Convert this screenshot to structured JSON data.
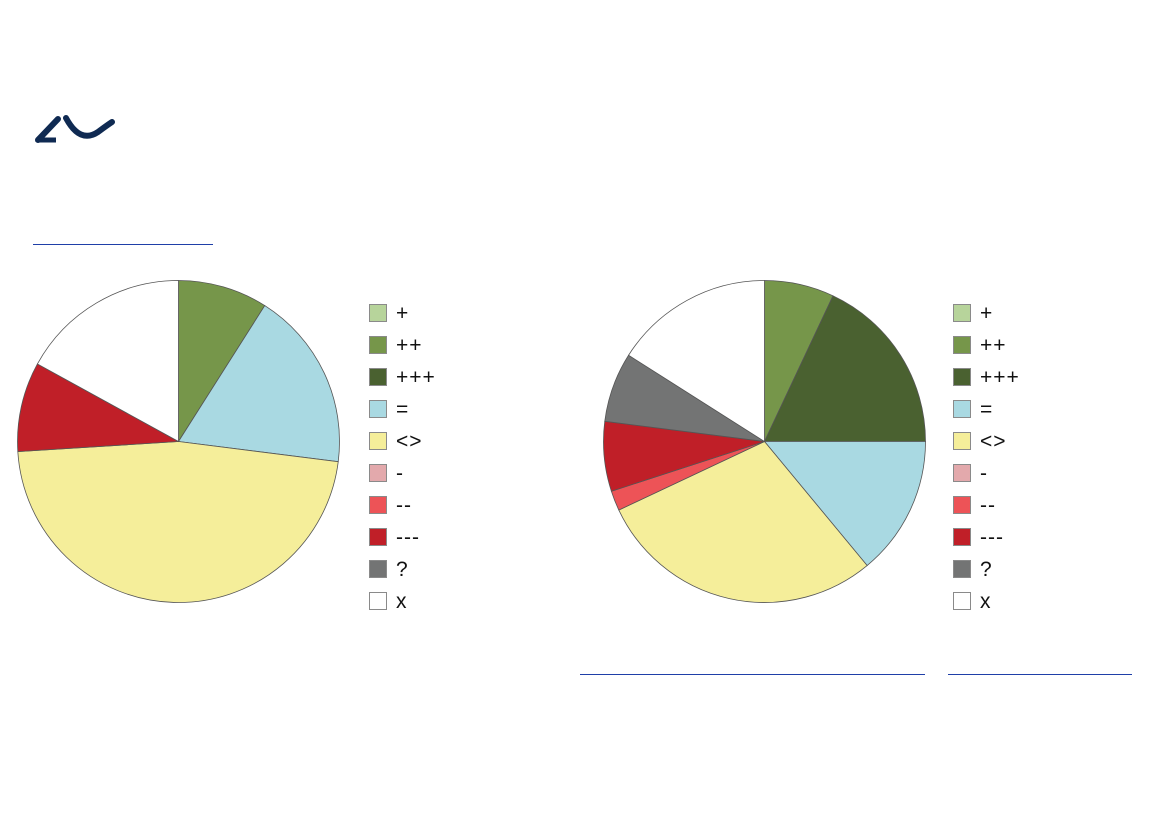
{
  "logo": {
    "icon": "aau-wave-logo-icon",
    "color": "#0f2a52"
  },
  "link_rule_color": "#1f3fa8",
  "legend": [
    {
      "label": "+",
      "color": "#b7d49b"
    },
    {
      "label": "++",
      "color": "#76964a"
    },
    {
      "label": "+++",
      "color": "#4a6130"
    },
    {
      "label": "=",
      "color": "#a9d9e2"
    },
    {
      "label": "<>",
      "color": "#f5ee9a"
    },
    {
      "label": "-",
      "color": "#e3a9ac"
    },
    {
      "label": "--",
      "color": "#ed5357"
    },
    {
      "label": "---",
      "color": "#c01f28"
    },
    {
      "label": "?",
      "color": "#737474"
    },
    {
      "label": "x",
      "color": "#ffffff"
    }
  ],
  "chart_data": [
    {
      "type": "pie",
      "title": "",
      "categories": [
        "+",
        "++",
        "+++",
        "=",
        "<>",
        "-",
        "--",
        "---",
        "?",
        "x"
      ],
      "values": [
        0,
        9,
        0,
        18,
        47,
        0,
        0,
        9,
        0,
        17
      ],
      "unit": "% (approx.)"
    },
    {
      "type": "pie",
      "title": "",
      "categories": [
        "+",
        "++",
        "+++",
        "=",
        "<>",
        "-",
        "--",
        "---",
        "?",
        "x"
      ],
      "values": [
        0,
        7,
        18,
        14,
        29,
        0,
        2,
        7,
        7,
        16
      ],
      "unit": "% (approx.)"
    }
  ]
}
